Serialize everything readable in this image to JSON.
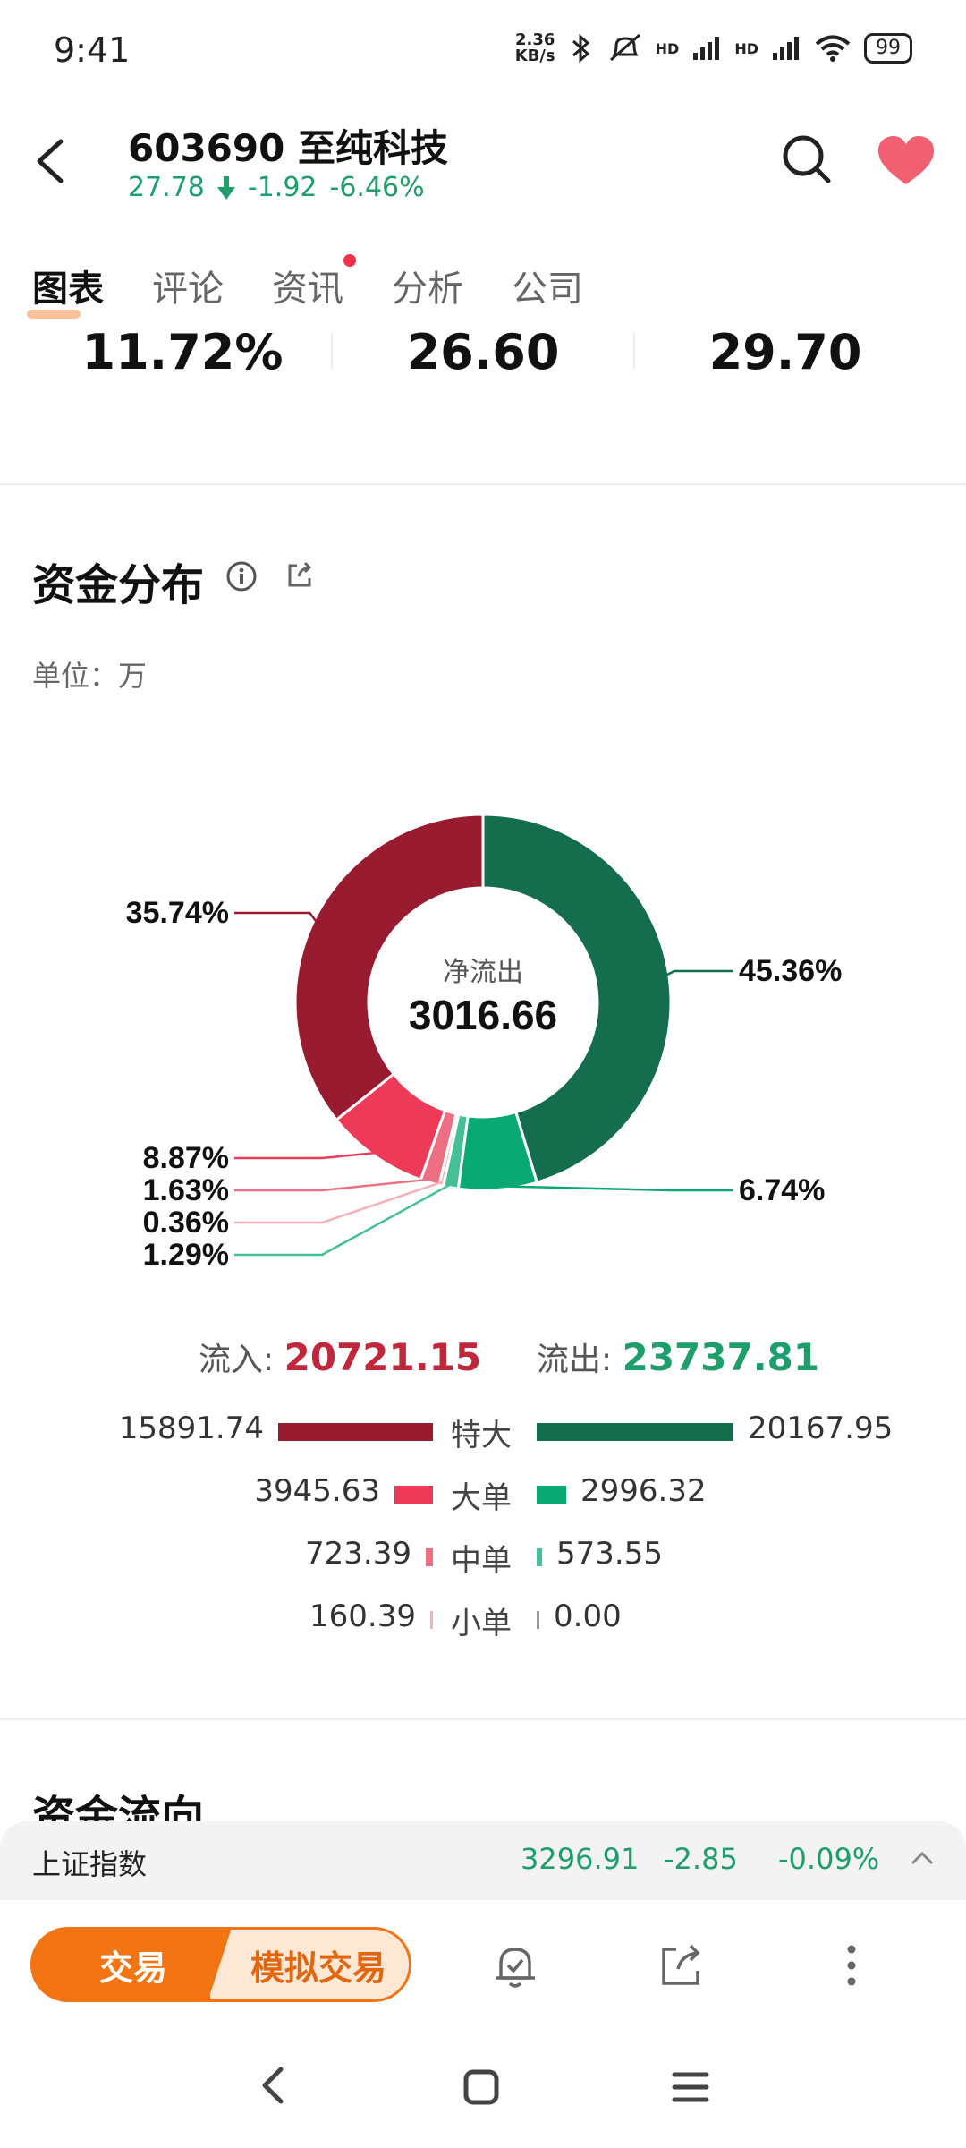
{
  "status_bar": {
    "time": "9:41",
    "net_speed_top": "2.36",
    "net_speed_bottom": "KB/s",
    "hd1": "HD",
    "hd2": "HD",
    "battery": "99"
  },
  "header": {
    "code_name": "603690  至纯科技",
    "price": "27.78",
    "change": "-1.92",
    "change_pct": "-6.46%"
  },
  "tabs": [
    "图表",
    "评论",
    "资讯",
    "分析",
    "公司"
  ],
  "stats": [
    "11.72%",
    "26.60",
    "29.70"
  ],
  "section": {
    "title": "资金分布",
    "unit": "单位：万"
  },
  "chart_data": {
    "type": "pie",
    "title": "",
    "center_label": "净流出",
    "center_value": "3016.66",
    "slices": [
      {
        "label": "45.36%",
        "value": 45.36,
        "color": "#146e4e"
      },
      {
        "label": "6.74%",
        "value": 6.74,
        "color": "#08a872"
      },
      {
        "label": "1.29%",
        "value": 1.29,
        "color": "#45c095"
      },
      {
        "label": "0.36%",
        "value": 0.36,
        "color": "#f7b0b8"
      },
      {
        "label": "1.63%",
        "value": 1.63,
        "color": "#ec6f82"
      },
      {
        "label": "8.87%",
        "value": 8.87,
        "color": "#ec3a58"
      },
      {
        "label": "35.74%",
        "value": 35.74,
        "color": "#991b2f"
      }
    ]
  },
  "flow": {
    "in_label": "流入:",
    "in_value": "20721.15",
    "out_label": "流出:",
    "out_value": "23737.81"
  },
  "orders": [
    {
      "category": "特大",
      "in": "15891.74",
      "out": "20167.95",
      "in_num": 15891.74,
      "out_num": 20167.95,
      "in_color": "#991b2f",
      "out_color": "#146e4e"
    },
    {
      "category": "大单",
      "in": "3945.63",
      "out": "2996.32",
      "in_num": 3945.63,
      "out_num": 2996.32,
      "in_color": "#ec3a58",
      "out_color": "#08a872"
    },
    {
      "category": "中单",
      "in": "723.39",
      "out": "573.55",
      "in_num": 723.39,
      "out_num": 573.55,
      "in_color": "#ec6f82",
      "out_color": "#45c095"
    },
    {
      "category": "小单",
      "in": "160.39",
      "out": "0.00",
      "in_num": 160.39,
      "out_num": 0.0,
      "in_color": "#f7b0b8",
      "out_color": "#999999"
    }
  ],
  "next_section_title": "资金流向",
  "index_bar": {
    "name": "上证指数",
    "value": "3296.91",
    "change": "-2.85",
    "change_pct": "-0.09%"
  },
  "bottom": {
    "trade": "交易",
    "sim_trade": "模拟交易"
  },
  "colors": {
    "up_red": "#c0273b",
    "down_green": "#1e9e6a",
    "accent": "#f27413"
  }
}
